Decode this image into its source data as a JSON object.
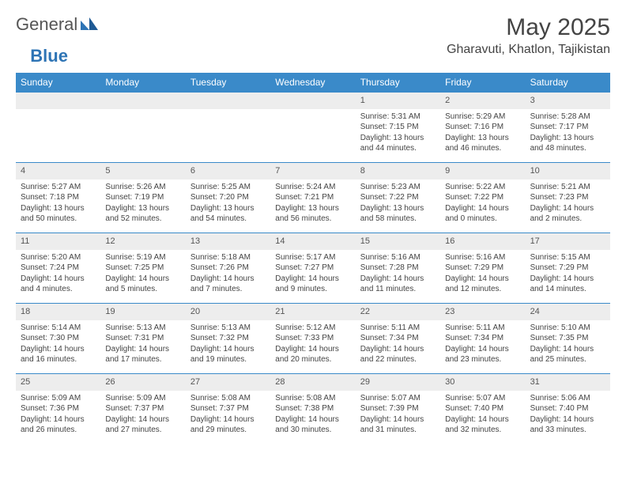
{
  "logo": {
    "general": "General",
    "blue": "Blue"
  },
  "title": "May 2025",
  "location": "Gharavuti, Khatlon, Tajikistan",
  "colors": {
    "header_bg": "#3a8ac9",
    "header_text": "#ffffff",
    "daynum_bg": "#ededed",
    "border": "#3a8ac9",
    "text": "#444444"
  },
  "weekdays": [
    "Sunday",
    "Monday",
    "Tuesday",
    "Wednesday",
    "Thursday",
    "Friday",
    "Saturday"
  ],
  "weeks": [
    [
      {
        "n": "",
        "empty": true
      },
      {
        "n": "",
        "empty": true
      },
      {
        "n": "",
        "empty": true
      },
      {
        "n": "",
        "empty": true
      },
      {
        "n": "1",
        "sunrise": "5:31 AM",
        "sunset": "7:15 PM",
        "daylight": "13 hours and 44 minutes."
      },
      {
        "n": "2",
        "sunrise": "5:29 AM",
        "sunset": "7:16 PM",
        "daylight": "13 hours and 46 minutes."
      },
      {
        "n": "3",
        "sunrise": "5:28 AM",
        "sunset": "7:17 PM",
        "daylight": "13 hours and 48 minutes."
      }
    ],
    [
      {
        "n": "4",
        "sunrise": "5:27 AM",
        "sunset": "7:18 PM",
        "daylight": "13 hours and 50 minutes."
      },
      {
        "n": "5",
        "sunrise": "5:26 AM",
        "sunset": "7:19 PM",
        "daylight": "13 hours and 52 minutes."
      },
      {
        "n": "6",
        "sunrise": "5:25 AM",
        "sunset": "7:20 PM",
        "daylight": "13 hours and 54 minutes."
      },
      {
        "n": "7",
        "sunrise": "5:24 AM",
        "sunset": "7:21 PM",
        "daylight": "13 hours and 56 minutes."
      },
      {
        "n": "8",
        "sunrise": "5:23 AM",
        "sunset": "7:22 PM",
        "daylight": "13 hours and 58 minutes."
      },
      {
        "n": "9",
        "sunrise": "5:22 AM",
        "sunset": "7:22 PM",
        "daylight": "14 hours and 0 minutes."
      },
      {
        "n": "10",
        "sunrise": "5:21 AM",
        "sunset": "7:23 PM",
        "daylight": "14 hours and 2 minutes."
      }
    ],
    [
      {
        "n": "11",
        "sunrise": "5:20 AM",
        "sunset": "7:24 PM",
        "daylight": "14 hours and 4 minutes."
      },
      {
        "n": "12",
        "sunrise": "5:19 AM",
        "sunset": "7:25 PM",
        "daylight": "14 hours and 5 minutes."
      },
      {
        "n": "13",
        "sunrise": "5:18 AM",
        "sunset": "7:26 PM",
        "daylight": "14 hours and 7 minutes."
      },
      {
        "n": "14",
        "sunrise": "5:17 AM",
        "sunset": "7:27 PM",
        "daylight": "14 hours and 9 minutes."
      },
      {
        "n": "15",
        "sunrise": "5:16 AM",
        "sunset": "7:28 PM",
        "daylight": "14 hours and 11 minutes."
      },
      {
        "n": "16",
        "sunrise": "5:16 AM",
        "sunset": "7:29 PM",
        "daylight": "14 hours and 12 minutes."
      },
      {
        "n": "17",
        "sunrise": "5:15 AM",
        "sunset": "7:29 PM",
        "daylight": "14 hours and 14 minutes."
      }
    ],
    [
      {
        "n": "18",
        "sunrise": "5:14 AM",
        "sunset": "7:30 PM",
        "daylight": "14 hours and 16 minutes."
      },
      {
        "n": "19",
        "sunrise": "5:13 AM",
        "sunset": "7:31 PM",
        "daylight": "14 hours and 17 minutes."
      },
      {
        "n": "20",
        "sunrise": "5:13 AM",
        "sunset": "7:32 PM",
        "daylight": "14 hours and 19 minutes."
      },
      {
        "n": "21",
        "sunrise": "5:12 AM",
        "sunset": "7:33 PM",
        "daylight": "14 hours and 20 minutes."
      },
      {
        "n": "22",
        "sunrise": "5:11 AM",
        "sunset": "7:34 PM",
        "daylight": "14 hours and 22 minutes."
      },
      {
        "n": "23",
        "sunrise": "5:11 AM",
        "sunset": "7:34 PM",
        "daylight": "14 hours and 23 minutes."
      },
      {
        "n": "24",
        "sunrise": "5:10 AM",
        "sunset": "7:35 PM",
        "daylight": "14 hours and 25 minutes."
      }
    ],
    [
      {
        "n": "25",
        "sunrise": "5:09 AM",
        "sunset": "7:36 PM",
        "daylight": "14 hours and 26 minutes."
      },
      {
        "n": "26",
        "sunrise": "5:09 AM",
        "sunset": "7:37 PM",
        "daylight": "14 hours and 27 minutes."
      },
      {
        "n": "27",
        "sunrise": "5:08 AM",
        "sunset": "7:37 PM",
        "daylight": "14 hours and 29 minutes."
      },
      {
        "n": "28",
        "sunrise": "5:08 AM",
        "sunset": "7:38 PM",
        "daylight": "14 hours and 30 minutes."
      },
      {
        "n": "29",
        "sunrise": "5:07 AM",
        "sunset": "7:39 PM",
        "daylight": "14 hours and 31 minutes."
      },
      {
        "n": "30",
        "sunrise": "5:07 AM",
        "sunset": "7:40 PM",
        "daylight": "14 hours and 32 minutes."
      },
      {
        "n": "31",
        "sunrise": "5:06 AM",
        "sunset": "7:40 PM",
        "daylight": "14 hours and 33 minutes."
      }
    ]
  ],
  "labels": {
    "sunrise": "Sunrise: ",
    "sunset": "Sunset: ",
    "daylight": "Daylight: "
  }
}
